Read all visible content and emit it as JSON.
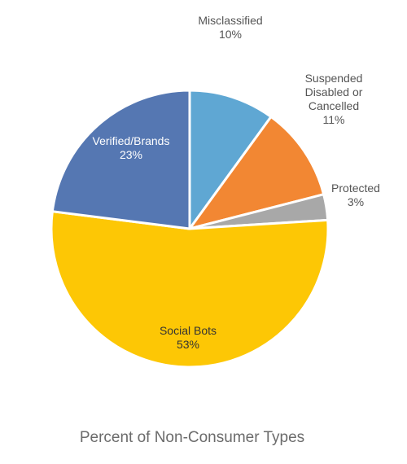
{
  "chart_data": {
    "type": "pie",
    "title": "Percent of Non-Consumer Types",
    "start_angle_deg": 0,
    "direction": "clockwise",
    "slices": [
      {
        "label": "Misclassified",
        "label_lines": [
          "Misclassified"
        ],
        "value": 10,
        "value_label": "10%",
        "color": "#5fa7d3",
        "label_color": "#555555",
        "label_placement": "outside"
      },
      {
        "label": "Suspended Disabled or Cancelled",
        "label_lines": [
          "Suspended",
          "Disabled or",
          "Cancelled"
        ],
        "value": 11,
        "value_label": "11%",
        "color": "#f28733",
        "label_color": "#555555",
        "label_placement": "outside"
      },
      {
        "label": "Protected",
        "label_lines": [
          "Protected"
        ],
        "value": 3,
        "value_label": "3%",
        "color": "#a8a8a8",
        "label_color": "#555555",
        "label_placement": "outside"
      },
      {
        "label": "Social Bots",
        "label_lines": [
          "Social Bots"
        ],
        "value": 53,
        "value_label": "53%",
        "color": "#fdc705",
        "label_color": "#333333",
        "label_placement": "inside"
      },
      {
        "label": "Verified/Brands",
        "label_lines": [
          "Verified/Brands"
        ],
        "value": 23,
        "value_label": "23%",
        "color": "#5577b2",
        "label_color": "#ffffff",
        "label_placement": "inside"
      }
    ]
  }
}
